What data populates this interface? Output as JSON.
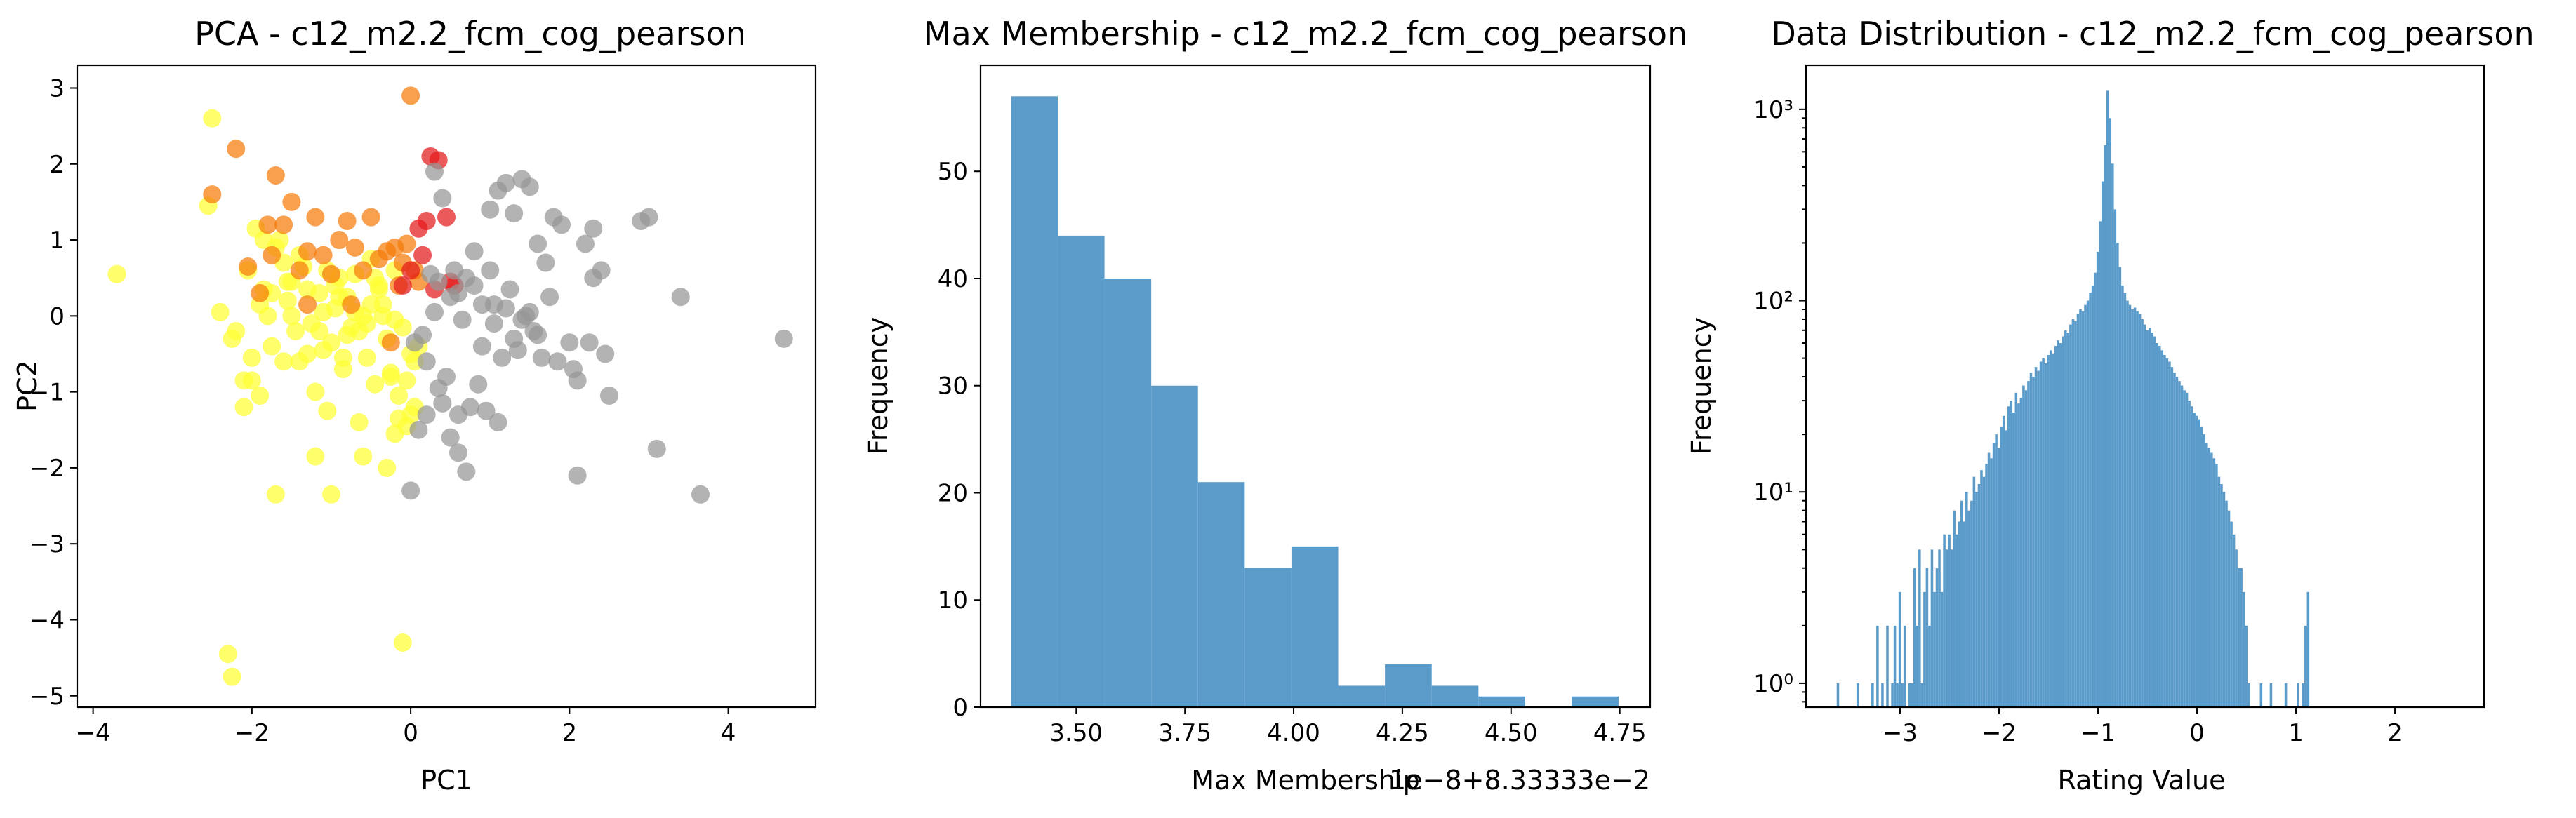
{
  "chart_data": [
    {
      "type": "scatter",
      "title": "PCA - c12_m2.2_fcm_cog_pearson",
      "xlabel": "PC1",
      "ylabel": "PC2",
      "xlim": [
        -4.2,
        5.1
      ],
      "ylim": [
        -5.15,
        3.3
      ],
      "xticks": [
        -4,
        -2,
        0,
        2,
        4
      ],
      "yticks": [
        -5,
        -4,
        -3,
        -2,
        -1,
        0,
        1,
        2,
        3
      ],
      "grid": false,
      "colors": {
        "yellow": "#ffff33",
        "orange": "#f57c0a",
        "red": "#e31a1c",
        "gray": "#969696"
      },
      "series": [
        {
          "color_key": "yellow",
          "x": [
            -3.7,
            -2.5,
            -2.55,
            -2.3,
            -2.25,
            -2.2,
            -2.1,
            -2.05,
            -2.0,
            -1.95,
            -1.9,
            -1.85,
            -1.8,
            -1.75,
            -1.7,
            -1.65,
            -1.6,
            -1.55,
            -1.5,
            -1.45,
            -1.4,
            -1.35,
            -1.3,
            -1.25,
            -1.2,
            -1.15,
            -1.1,
            -1.05,
            -1.0,
            -0.95,
            -0.9,
            -0.85,
            -0.8,
            -0.75,
            -0.7,
            -0.65,
            -0.6,
            -0.55,
            -0.5,
            -0.45,
            -0.4,
            -0.35,
            -0.3,
            -0.25,
            -0.2,
            -0.15,
            -0.1,
            -0.05,
            0.0,
            0.05,
            0.1,
            -2.0,
            -1.7,
            -1.2,
            -1.0,
            -0.6,
            -0.3,
            -0.1,
            0.0,
            -1.9,
            -1.4,
            -0.8,
            -0.5,
            -0.2,
            -1.6,
            -1.1,
            -0.7,
            -0.4,
            -2.4,
            -2.25,
            -0.2,
            -1.75,
            -1.05,
            -0.55,
            -0.9,
            -1.3,
            -0.15,
            0.05,
            -1.5,
            -0.65,
            -2.1,
            -1.55,
            -0.35,
            -0.05,
            -0.85,
            -1.15,
            -0.45,
            -0.25,
            -1.85,
            -0.95
          ],
          "y": [
            0.55,
            2.6,
            1.45,
            -4.45,
            -4.75,
            -0.2,
            -1.2,
            0.6,
            -0.85,
            1.15,
            -1.05,
            0.35,
            0.0,
            -0.4,
            0.9,
            1.0,
            -0.6,
            0.2,
            0.45,
            -0.2,
            0.8,
            0.65,
            -0.5,
            -0.1,
            -1.0,
            0.3,
            0.05,
            -1.25,
            -0.35,
            0.1,
            0.5,
            -0.7,
            0.25,
            -0.15,
            0.55,
            -1.4,
            0.0,
            -0.55,
            0.15,
            -0.9,
            0.4,
            0.0,
            -0.3,
            -0.8,
            -0.05,
            -1.35,
            -0.15,
            -1.45,
            -0.5,
            -0.6,
            -0.4,
            -0.55,
            -2.35,
            -1.85,
            -2.35,
            -1.85,
            -2.0,
            -4.3,
            -1.3,
            0.15,
            -0.6,
            -0.25,
            0.75,
            0.6,
            0.7,
            -0.45,
            0.05,
            0.35,
            0.05,
            -0.3,
            -1.55,
            0.3,
            0.6,
            -0.1,
            0.25,
            0.35,
            -1.05,
            -1.2,
            0.0,
            -0.2,
            -0.85,
            0.45,
            0.15,
            -0.85,
            -0.55,
            -0.2,
            0.5,
            -0.75,
            1.0,
            0.4
          ]
        },
        {
          "color_key": "orange",
          "x": [
            -2.5,
            -2.2,
            -2.05,
            -1.9,
            -1.8,
            -1.7,
            -1.6,
            -1.5,
            -1.4,
            -1.3,
            -1.2,
            -1.1,
            -1.0,
            -0.9,
            -0.8,
            -0.7,
            -0.6,
            -0.5,
            -0.4,
            -0.3,
            -0.2,
            -0.1,
            0.0,
            0.1,
            -1.75,
            -1.3,
            -0.75,
            -0.15,
            -0.25,
            -0.05,
            0.05
          ],
          "y": [
            1.6,
            2.2,
            0.65,
            0.3,
            1.2,
            1.85,
            1.2,
            1.5,
            0.6,
            0.85,
            1.3,
            0.8,
            0.55,
            1.0,
            1.25,
            0.9,
            0.6,
            1.3,
            0.75,
            0.85,
            0.9,
            0.7,
            2.9,
            0.45,
            0.8,
            0.15,
            0.15,
            0.4,
            -0.35,
            0.95,
            0.6
          ]
        },
        {
          "color_key": "red",
          "x": [
            0.25,
            0.35,
            0.45,
            0.55,
            0.1,
            0.2,
            0.3,
            0.0,
            0.15,
            -0.1,
            0.5
          ],
          "y": [
            2.1,
            2.05,
            1.3,
            0.4,
            1.15,
            1.25,
            0.35,
            0.6,
            0.8,
            0.4,
            0.45
          ]
        },
        {
          "color_key": "gray",
          "x": [
            0.0,
            0.1,
            0.2,
            0.3,
            0.4,
            0.5,
            0.6,
            0.7,
            0.8,
            0.9,
            1.0,
            1.1,
            1.2,
            1.3,
            1.4,
            1.5,
            1.6,
            1.7,
            1.8,
            1.9,
            2.0,
            2.1,
            2.2,
            2.3,
            2.4,
            2.5,
            2.9,
            3.0,
            3.1,
            3.4,
            3.65,
            4.7,
            0.35,
            0.5,
            0.65,
            0.85,
            1.05,
            1.25,
            1.45,
            1.65,
            1.85,
            2.05,
            2.25,
            2.45,
            0.15,
            0.45,
            0.75,
            0.95,
            1.15,
            1.35,
            1.55,
            1.75,
            0.25,
            0.55,
            0.8,
            1.0,
            1.2,
            1.4,
            1.6,
            2.1,
            0.35,
            0.6,
            0.9,
            1.3,
            0.05,
            0.3,
            0.6,
            1.05,
            1.5,
            2.3,
            0.7,
            1.1,
            0.2,
            0.4
          ],
          "y": [
            -2.3,
            -1.5,
            -1.3,
            1.9,
            1.55,
            -1.6,
            -1.8,
            0.5,
            0.85,
            0.15,
            1.4,
            1.65,
            1.75,
            1.35,
            1.8,
            1.7,
            0.95,
            0.7,
            1.3,
            1.2,
            -0.35,
            -0.85,
            0.95,
            1.15,
            0.6,
            -1.05,
            1.25,
            1.3,
            -1.75,
            0.25,
            -2.35,
            -0.3,
            0.45,
            0.25,
            -0.05,
            -0.9,
            -0.1,
            0.35,
            0.0,
            -0.55,
            -0.6,
            -0.7,
            -0.35,
            -0.5,
            -0.25,
            -0.8,
            -1.2,
            -1.25,
            -0.55,
            -0.45,
            -0.2,
            0.25,
            0.55,
            0.6,
            0.4,
            0.6,
            0.1,
            -0.05,
            -0.25,
            -2.1,
            -0.95,
            -1.3,
            -0.4,
            -0.3,
            -0.35,
            0.05,
            0.3,
            0.15,
            0.05,
            0.5,
            -2.05,
            -1.4,
            -0.6,
            -1.15
          ]
        }
      ]
    },
    {
      "type": "bar",
      "title": "Max Membership - c12_m2.2_fcm_cog_pearson",
      "xlabel": "Max Membership",
      "ylabel": "Frequency",
      "offset_text": "1e−8+8.33333e−2",
      "bin_edges": [
        3.35,
        3.4575,
        3.565,
        3.6725,
        3.78,
        3.8875,
        3.995,
        4.1025,
        4.21,
        4.3175,
        4.425,
        4.5325,
        4.64,
        4.7475
      ],
      "values": [
        57,
        44,
        40,
        30,
        21,
        13,
        15,
        2,
        4,
        2,
        1,
        0,
        1
      ],
      "xlim": [
        3.28,
        4.82
      ],
      "ylim": [
        0,
        59.9
      ],
      "xticks": [
        "3.50",
        "3.75",
        "4.00",
        "4.25",
        "4.50",
        "4.75"
      ],
      "xtick_values": [
        3.5,
        3.75,
        4.0,
        4.25,
        4.5,
        4.75
      ],
      "yticks": [
        0,
        10,
        20,
        30,
        40,
        50
      ],
      "color": "#5b9bc9",
      "grid": false
    },
    {
      "type": "bar",
      "title": "Data Distribution - c12_m2.2_fcm_cog_pearson",
      "xlabel": "Rating Value",
      "ylabel": "Frequency",
      "yscale": "log",
      "xlim": [
        -3.95,
        2.9
      ],
      "ylim": [
        0.75,
        1700
      ],
      "xticks": [
        -3,
        -2,
        -1,
        0,
        1,
        2
      ],
      "yticks": [
        "10⁰",
        "10¹",
        "10²",
        "10³"
      ],
      "ytick_values": [
        1,
        10,
        100,
        1000
      ],
      "color": "#5b9bc9",
      "grid": false,
      "bins": {
        "start": -3.64,
        "width": 0.025
      },
      "values": [
        1,
        0,
        0,
        0,
        0,
        0,
        0,
        0,
        1,
        0,
        0,
        0,
        0,
        0,
        1,
        0,
        2,
        0,
        1,
        0,
        2,
        0,
        1,
        2,
        1,
        3,
        1,
        2,
        0,
        1,
        1,
        4,
        2,
        5,
        1,
        3,
        4,
        2,
        5,
        3,
        4,
        5,
        3,
        6,
        5,
        6,
        5,
        8,
        6,
        7,
        9,
        7,
        10,
        8,
        9,
        12,
        10,
        11,
        13,
        12,
        14,
        16,
        15,
        18,
        20,
        17,
        22,
        25,
        21,
        28,
        30,
        26,
        33,
        29,
        31,
        36,
        34,
        38,
        42,
        40,
        45,
        43,
        48,
        50,
        47,
        52,
        55,
        53,
        58,
        62,
        60,
        65,
        70,
        68,
        75,
        80,
        78,
        85,
        90,
        88,
        95,
        100,
        110,
        120,
        140,
        180,
        260,
        420,
        650,
        1250,
        900,
        520,
        300,
        200,
        150,
        120,
        110,
        100,
        95,
        90,
        92,
        88,
        85,
        80,
        75,
        70,
        72,
        68,
        65,
        60,
        58,
        55,
        52,
        50,
        48,
        45,
        42,
        40,
        38,
        36,
        34,
        33,
        30,
        28,
        26,
        25,
        24,
        22,
        20,
        18,
        17,
        16,
        15,
        14,
        12,
        11,
        10,
        9,
        8,
        7,
        6,
        5,
        4,
        4,
        3,
        2,
        1,
        0,
        0,
        0,
        0,
        1,
        0,
        0,
        0,
        1,
        0,
        0,
        0,
        0,
        0,
        1,
        0,
        0,
        0,
        0,
        1,
        0,
        1,
        2,
        3
      ]
    }
  ]
}
